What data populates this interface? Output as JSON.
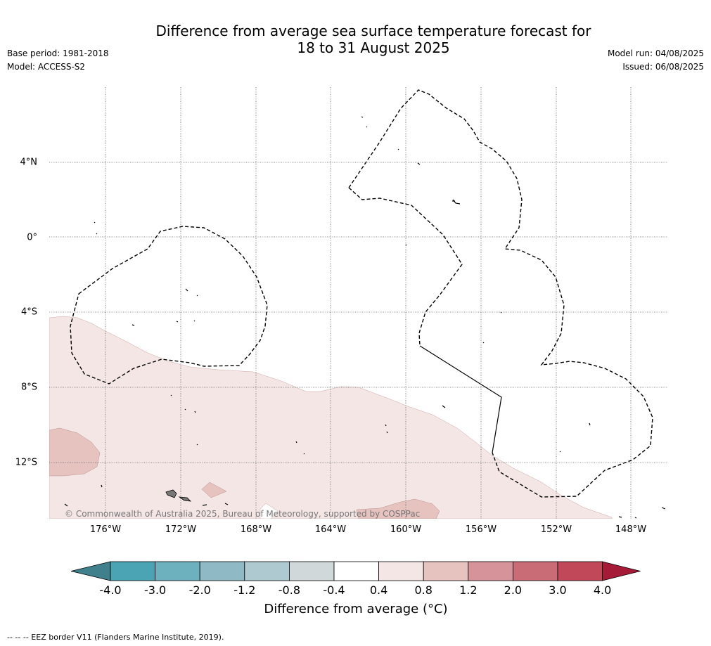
{
  "title": {
    "line1": "Difference from average sea surface temperature forecast for",
    "line2": "18 to 31 August 2025"
  },
  "meta": {
    "base_period": "Base period: 1981-2018",
    "model": "Model: ACCESS-S2",
    "model_run": "Model run: 04/08/2025",
    "issued": "Issued: 06/08/2025"
  },
  "map": {
    "lat_labels": [
      "4°N",
      "0°",
      "4°S",
      "8°S",
      "12°S"
    ],
    "lon_labels": [
      "176°W",
      "172°W",
      "168°W",
      "164°W",
      "160°W",
      "156°W",
      "152°W",
      "148°W"
    ],
    "copyright": "© Commonwealth of Australia 2025, Bureau of Meteorology, supported by COSPPac",
    "anomaly_fill_colors": {
      "0.4 to 0.8": "#f4e6e5",
      "0.8 to 1.2": "#e6c3bf"
    }
  },
  "colorbar": {
    "ticks": [
      "-4.0",
      "-3.0",
      "-2.0",
      "-1.2",
      "-0.8",
      "-0.4",
      "0.4",
      "0.8",
      "1.2",
      "2.0",
      "3.0",
      "4.0"
    ],
    "colors": [
      "#3f808c",
      "#4aa4b4",
      "#6eb1be",
      "#8fbac5",
      "#aec9cf",
      "#d1d8da",
      "#ffffff",
      "#f4e6e5",
      "#e6c3bf",
      "#d6939a",
      "#c96c76",
      "#c04858",
      "#a51a36"
    ],
    "title": "Difference from average (°C)"
  },
  "footnote": "--  --  -- EEZ border V11 (Flanders Marine Institute, 2019)."
}
